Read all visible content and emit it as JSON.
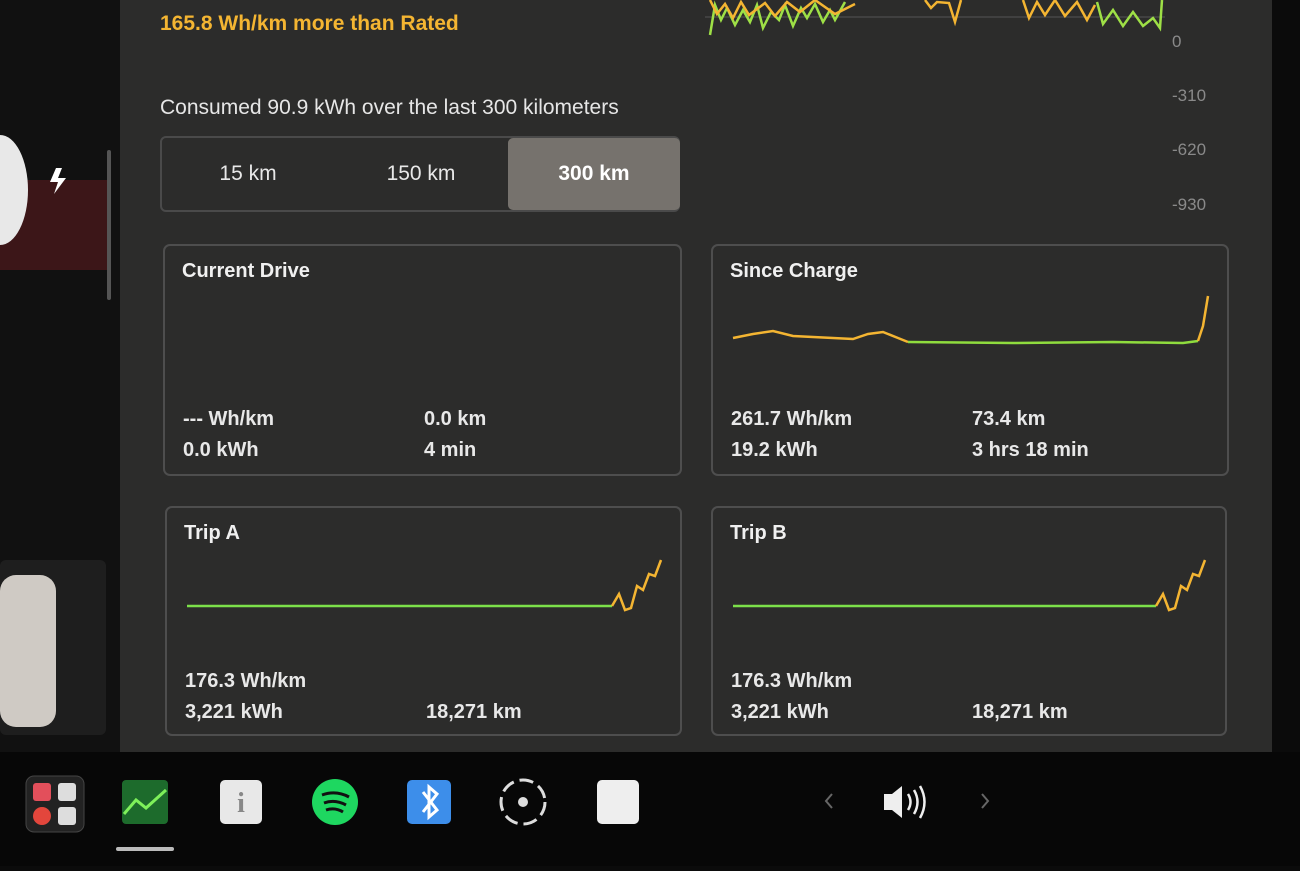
{
  "efficiency_note": "165.8 Wh/km more than Rated",
  "graph_axis_labels": [
    0,
    -310,
    -620,
    -930
  ],
  "consumed_summary": "Consumed 90.9 kWh over the last 300 kilometers",
  "range_tabs": [
    "15 km",
    "150 km",
    "300 km"
  ],
  "selected_tab": "300 km",
  "cards": [
    {
      "title": "Current Drive",
      "rows": [
        [
          "--- Wh/km",
          "0.0 km"
        ],
        [
          "0.0 kWh",
          "4 min"
        ]
      ]
    },
    {
      "title": "Since Charge",
      "rows": [
        [
          "261.7 Wh/km",
          "73.4 km"
        ],
        [
          "19.2 kWh",
          "3 hrs 18 min"
        ]
      ]
    },
    {
      "title": "Trip A",
      "rows": [
        [
          "176.3 Wh/km"
        ],
        [
          "3,221 kWh",
          "18,271 km"
        ]
      ]
    },
    {
      "title": "Trip B",
      "rows": [
        [
          "176.3 Wh/km"
        ],
        [
          "3,221 kWh",
          "18,271 km"
        ]
      ]
    }
  ]
}
